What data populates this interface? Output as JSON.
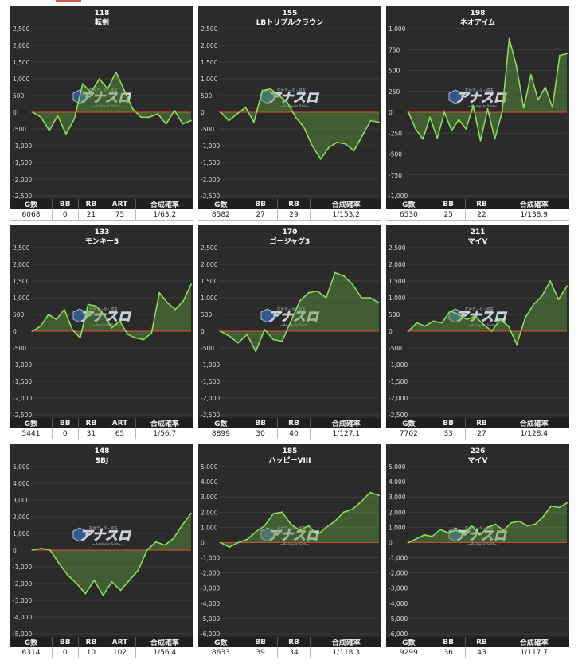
{
  "colors": {
    "line": "#8ddc5a",
    "fill": "#5f9a3e",
    "zero": "#d23a2a",
    "grid": "#444444",
    "bg": "#2b2b2b"
  },
  "watermark": {
    "small": "在台データ・収支",
    "main": "アナスロ",
    "sub": "~Analysis Slot~"
  },
  "chart_data": [
    {
      "type": "area",
      "machine_no": "118",
      "name": "転剣",
      "yticks": [
        2500,
        2000,
        1500,
        1000,
        500,
        0,
        -500,
        -1000,
        -1500,
        -2000,
        -2500
      ],
      "ylim": [
        -2500,
        2500
      ],
      "y": [
        0,
        -150,
        -550,
        -100,
        -650,
        -200,
        850,
        600,
        1000,
        700,
        1200,
        650,
        100,
        -150,
        -150,
        -50,
        -350,
        50,
        -350,
        -250
      ],
      "columns": [
        "G数",
        "BB",
        "RB",
        "ART",
        "合成確率"
      ],
      "values": [
        "6068",
        "0",
        "21",
        "75",
        "1/63.2"
      ]
    },
    {
      "type": "area",
      "machine_no": "155",
      "name": "LBトリプルクラウン",
      "yticks": [
        2500,
        2000,
        1500,
        1000,
        500,
        0,
        -500,
        -1000,
        -1500,
        -2000,
        -2500
      ],
      "ylim": [
        -2500,
        2500
      ],
      "y": [
        0,
        -250,
        -50,
        150,
        -300,
        650,
        700,
        500,
        300,
        -150,
        -450,
        -1000,
        -1400,
        -1050,
        -900,
        -950,
        -1150,
        -700,
        -250,
        -300
      ],
      "columns": [
        "G数",
        "BB",
        "RB",
        "合成確率"
      ],
      "values": [
        "8582",
        "27",
        "29",
        "1/153.2"
      ]
    },
    {
      "type": "area",
      "machine_no": "198",
      "name": "ネオアイム",
      "yticks": [
        1000,
        750,
        500,
        250,
        0,
        -250,
        -500,
        -750,
        -1000
      ],
      "ylim": [
        -1000,
        1000
      ],
      "y": [
        0,
        -200,
        -320,
        -60,
        -310,
        0,
        -220,
        -90,
        -200,
        80,
        -340,
        40,
        -320,
        0,
        880,
        550,
        50,
        450,
        150,
        300,
        60,
        680,
        700
      ],
      "columns": [
        "G数",
        "BB",
        "RB",
        "合成確率"
      ],
      "values": [
        "6530",
        "25",
        "22",
        "1/138.9"
      ]
    },
    {
      "type": "area",
      "machine_no": "133",
      "name": "モンキー5",
      "yticks": [
        2500,
        2000,
        1500,
        1000,
        500,
        0,
        -500,
        -1000,
        -1500,
        -2000,
        -2500
      ],
      "ylim": [
        -2500,
        2500
      ],
      "y": [
        0,
        150,
        500,
        350,
        650,
        50,
        -200,
        800,
        750,
        500,
        100,
        300,
        -100,
        -200,
        -250,
        -50,
        1150,
        850,
        650,
        900,
        1400
      ],
      "columns": [
        "G数",
        "BB",
        "RB",
        "ART",
        "合成確率"
      ],
      "values": [
        "5441",
        "0",
        "31",
        "65",
        "1/56.7"
      ]
    },
    {
      "type": "area",
      "machine_no": "170",
      "name": "ゴージャグ3",
      "yticks": [
        2500,
        2000,
        1500,
        1000,
        500,
        0,
        -500,
        -1000,
        -1500,
        -2000,
        -2500
      ],
      "ylim": [
        -2500,
        2500
      ],
      "y": [
        0,
        -150,
        -350,
        -100,
        -600,
        50,
        -250,
        -300,
        300,
        900,
        1150,
        1200,
        1000,
        1750,
        1650,
        1400,
        1000,
        1000,
        850
      ],
      "columns": [
        "G数",
        "BB",
        "RB",
        "合成確率"
      ],
      "values": [
        "8899",
        "30",
        "40",
        "1/127.1"
      ]
    },
    {
      "type": "area",
      "machine_no": "211",
      "name": "マイV",
      "yticks": [
        2500,
        2000,
        1500,
        1000,
        500,
        0,
        -500,
        -1000,
        -1500,
        -2000,
        -2500
      ],
      "ylim": [
        -2500,
        2500
      ],
      "y": [
        0,
        250,
        150,
        300,
        250,
        600,
        500,
        350,
        450,
        200,
        0,
        350,
        150,
        -400,
        400,
        800,
        1050,
        1500,
        950,
        1350
      ],
      "columns": [
        "G数",
        "BB",
        "RB",
        "合成確率"
      ],
      "values": [
        "7702",
        "33",
        "27",
        "1/128.4"
      ]
    },
    {
      "type": "area",
      "machine_no": "148",
      "name": "SBJ",
      "yticks": [
        5000,
        4000,
        3000,
        2000,
        1000,
        0,
        -1000,
        -2000,
        -3000,
        -4000,
        -5000
      ],
      "ylim": [
        -5000,
        5000
      ],
      "y": [
        0,
        100,
        0,
        -800,
        -1500,
        -2000,
        -2600,
        -1800,
        -2700,
        -1900,
        -2400,
        -1800,
        -1200,
        0,
        500,
        300,
        700,
        1500,
        2200
      ],
      "columns": [
        "G数",
        "BB",
        "RB",
        "ART",
        "合成確率"
      ],
      "values": [
        "6314",
        "0",
        "10",
        "102",
        "1/56.4"
      ]
    },
    {
      "type": "area",
      "machine_no": "185",
      "name": "ハッピーVIII",
      "yticks": [
        5000,
        4000,
        3000,
        2000,
        1000,
        0,
        -1000,
        -2000,
        -3000,
        -4000,
        -5000,
        -6000
      ],
      "ylim": [
        -6000,
        5000
      ],
      "y": [
        0,
        -300,
        0,
        200,
        700,
        1100,
        1900,
        2000,
        1200,
        800,
        1100,
        500,
        1000,
        1400,
        2000,
        2200,
        2700,
        3300,
        3100
      ],
      "columns": [
        "G数",
        "BB",
        "RB",
        "合成確率"
      ],
      "values": [
        "8633",
        "39",
        "34",
        "1/118.3"
      ]
    },
    {
      "type": "area",
      "machine_no": "226",
      "name": "マイV",
      "yticks": [
        5000,
        4000,
        3000,
        2000,
        1000,
        0,
        -1000,
        -2000,
        -3000,
        -4000,
        -5000,
        -6000
      ],
      "ylim": [
        -6000,
        5000
      ],
      "y": [
        0,
        250,
        500,
        400,
        850,
        650,
        800,
        600,
        1100,
        500,
        1000,
        1200,
        800,
        1300,
        1400,
        1100,
        1200,
        1700,
        2400,
        2300,
        2600
      ],
      "columns": [
        "G数",
        "BB",
        "RB",
        "合成確率"
      ],
      "values": [
        "9299",
        "36",
        "43",
        "1/117.7"
      ]
    }
  ]
}
